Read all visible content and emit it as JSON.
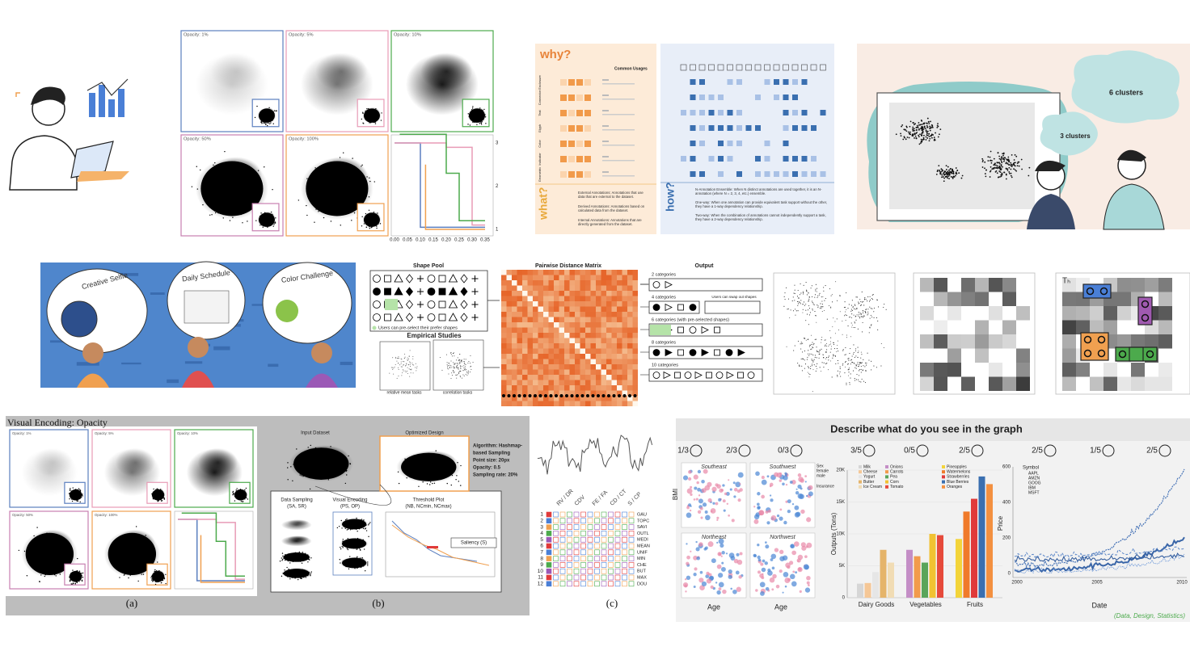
{
  "top_opacity": {
    "labels": [
      "Opacity: 1%",
      "Opacity: 5%",
      "Opacity: 10%",
      "Opacity: 50%",
      "Opacity: 100%"
    ],
    "xticks": [
      "0.00",
      "0.05",
      "0.10",
      "0.15",
      "0.20",
      "0.25",
      "0.30",
      "0.35"
    ],
    "yticks": [
      "1",
      "2",
      "3"
    ]
  },
  "annotation_figure": {
    "why": "why?",
    "what": "what?",
    "how": "how?",
    "common_usages": "Common Usages",
    "rows": [
      "Enclosure",
      "Connector",
      "Text",
      "Glyph",
      "Color",
      "Indicator",
      "Geometric"
    ],
    "what_items": [
      "External Annotations: Annotations that use data that are external to the dataset.",
      "Derived Annotations: Annotations based on calculated data from the dataset.",
      "Internal Annotations: Annotations that are directly generated from the dataset."
    ],
    "how_items": [
      "N-Annotation Ensemble: When N distinct annotations are used together, it is an N-annotation (where N = 2, 3, 4, etc.) ensemble.",
      "One-way: When one annotation can provide equivalent task support without the other, they have a 1-way dependency relationship.",
      "Two-way: When the combination of annotations cannot independently support a task, they have a 2-way dependency relationship."
    ]
  },
  "cluster_illustration": {
    "big_cloud": "6 clusters",
    "small_cloud": "3 clusters"
  },
  "kids_illustration": {
    "bubbles": [
      "Creative Selfie",
      "Daily Schedule",
      "Color Challenge"
    ]
  },
  "shape_figure": {
    "shape_pool": "Shape Pool",
    "matrix": "Pairwise Distance Matrix",
    "output": "Output",
    "preselect": "Users can pre-select their prefer shapes",
    "empirical": "Empirical Studies",
    "task_a": "relative mean tasks",
    "task_b": "correlation tasks",
    "swap": "Users can swap out shapes",
    "outputs": [
      "2 categories",
      "4 categories",
      "6 categories (with pre-selected shapes)",
      "8 categories",
      "10 categories"
    ]
  },
  "heatmap_label": "Tₕ",
  "bottom_left": {
    "title": "Visual Encoding: Opacity",
    "opacity_labels": [
      "Opacity: 1%",
      "Opacity: 5%",
      "Opacity: 10%",
      "Opacity: 50%",
      "Opacity: 100%"
    ],
    "input": "Input Dataset",
    "optimized": "Optimized Design",
    "algorithm": [
      "Algorithm: Hashmap-",
      "based Sampling",
      "Point size: 20px",
      "Opacity: 0.5",
      "Sampling rate: 20%"
    ],
    "sampling": [
      "Data Sampling",
      "(SA, SR)"
    ],
    "encoding": [
      "Visual Encoding",
      "(PS, OP)"
    ],
    "threshold": [
      "Threshold Plot",
      "(NB, NCmin, NCmax)"
    ],
    "saliency": "Saliency (S)",
    "captions": [
      "(a)",
      "(b)",
      "(c)"
    ]
  },
  "panel_c": {
    "columns": [
      "RV / DR",
      "CDV",
      "FE / FA",
      "CD / CT",
      "S / CP"
    ],
    "rows": [
      "1",
      "2",
      "3",
      "4",
      "5",
      "6",
      "7",
      "8",
      "9",
      "10",
      "11",
      "12"
    ],
    "names": [
      "GAU",
      "TOPC",
      "SAVI",
      "OUTL",
      "MEDI",
      "MEAN",
      "UNIF",
      "MIN",
      "CHE",
      "BUT",
      "MAX",
      "DOU"
    ]
  },
  "survey": {
    "title": "Describe what do you see in the graph",
    "scores": [
      "1/3",
      "2/3",
      "0/3",
      "3/5",
      "0/5",
      "2/5",
      "2/5",
      "1/5",
      "2/5"
    ],
    "scatter": {
      "panels": [
        "Southeast",
        "Southwest",
        "Northeast",
        "Northwest"
      ],
      "ylabel": "BMI",
      "xlabel": "Age",
      "legend": [
        "Sex",
        "female",
        "male",
        "Insurance"
      ]
    },
    "bar_chart": {
      "ylabel": "Outputs (Tons)",
      "ylim": [
        0,
        20000
      ],
      "yticks": [
        0,
        {
          "value": 5000,
          "label": "5K"
        },
        {
          "value": 10000,
          "label": "10K"
        },
        {
          "value": 15000,
          "label": "15K"
        },
        {
          "value": 20000,
          "label": "20K"
        }
      ],
      "groups": [
        {
          "name": "Dairy Goods",
          "items": [
            "Milk",
            "Cheese",
            "Yogurt",
            "Butter",
            "Ice Cream"
          ],
          "colors": [
            "#d6d6d6",
            "#f5c796",
            "#e6e6e6",
            "#e5b46a",
            "#f1dcb4"
          ],
          "values": [
            2200,
            2300,
            4000,
            7500,
            5500
          ]
        },
        {
          "name": "Vegetables",
          "items": [
            "Onions",
            "Carrots",
            "Pea",
            "Corn",
            "Tomato"
          ],
          "colors": [
            "#c48ec6",
            "#f29b4c",
            "#5aa55a",
            "#f1c232",
            "#e64a3b"
          ],
          "values": [
            7500,
            6500,
            5500,
            10000,
            9800
          ]
        },
        {
          "name": "Fruits",
          "items": [
            "Pineapples",
            "Watermelons",
            "Strawberries",
            "Blue Berries",
            "Oranges"
          ],
          "colors": [
            "#f3d43a",
            "#f07a2a",
            "#e03a3a",
            "#3a6fb0",
            "#f39040"
          ],
          "values": [
            9200,
            13500,
            15500,
            19000,
            17800
          ]
        }
      ]
    },
    "line_chart": {
      "ylabel": "Price",
      "xlabel": "Date",
      "legend_title": "Symbol",
      "symbols": [
        "AAPL",
        "AMZN",
        "GOOG",
        "IBM",
        "MSFT"
      ],
      "xticks": [
        "2000",
        "2005",
        "2010"
      ],
      "yticks": [
        "0",
        "200",
        "400",
        "600"
      ]
    },
    "footer": "(Data, Design, Statistics)"
  }
}
